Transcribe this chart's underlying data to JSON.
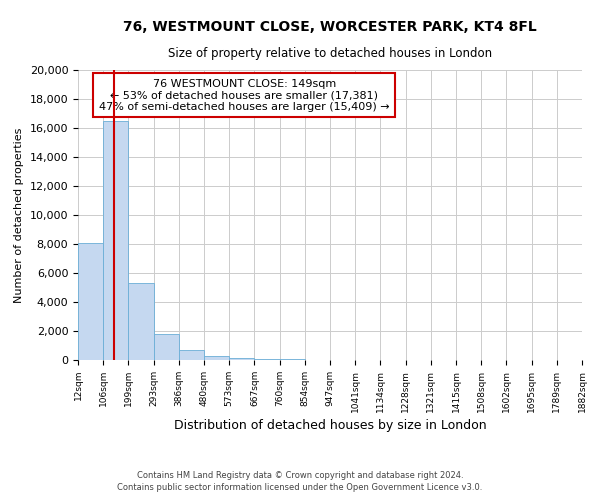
{
  "title": "76, WESTMOUNT CLOSE, WORCESTER PARK, KT4 8FL",
  "subtitle": "Size of property relative to detached houses in London",
  "xlabel": "Distribution of detached houses by size in London",
  "ylabel": "Number of detached properties",
  "bin_labels": [
    "12sqm",
    "106sqm",
    "199sqm",
    "293sqm",
    "386sqm",
    "480sqm",
    "573sqm",
    "667sqm",
    "760sqm",
    "854sqm",
    "947sqm",
    "1041sqm",
    "1134sqm",
    "1228sqm",
    "1321sqm",
    "1415sqm",
    "1508sqm",
    "1602sqm",
    "1695sqm",
    "1789sqm",
    "1882sqm"
  ],
  "bar_values": [
    8100,
    16500,
    5300,
    1800,
    700,
    300,
    150,
    100,
    50,
    0,
    0,
    0,
    0,
    0,
    0,
    0,
    0,
    0,
    0,
    0
  ],
  "bar_color": "#c5d8f0",
  "bar_edgecolor": "#6aaed6",
  "red_line_color": "#cc0000",
  "red_line_x": 1.43,
  "annotation_text": "76 WESTMOUNT CLOSE: 149sqm\n← 53% of detached houses are smaller (17,381)\n47% of semi-detached houses are larger (15,409) →",
  "annotation_box_edgecolor": "#cc0000",
  "annotation_box_facecolor": "#ffffff",
  "ylim": [
    0,
    20000
  ],
  "yticks": [
    0,
    2000,
    4000,
    6000,
    8000,
    10000,
    12000,
    14000,
    16000,
    18000,
    20000
  ],
  "footer_line1": "Contains HM Land Registry data © Crown copyright and database right 2024.",
  "footer_line2": "Contains public sector information licensed under the Open Government Licence v3.0.",
  "bg_color": "#ffffff",
  "grid_color": "#cccccc"
}
